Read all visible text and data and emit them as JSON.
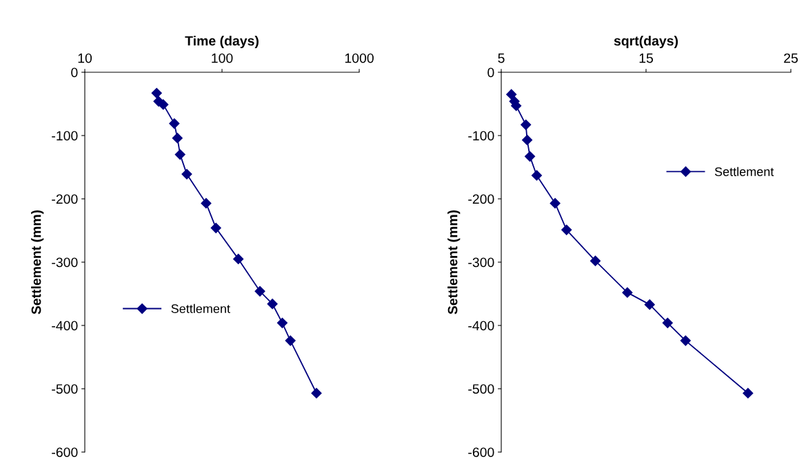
{
  "chart_data": [
    {
      "type": "line",
      "xlabel": "Time (days)",
      "ylabel": "Settlement (mm)",
      "log": "x",
      "xlim": [
        10,
        1000
      ],
      "xticks": [
        10,
        100,
        1000
      ],
      "ylim": [
        -600,
        0
      ],
      "yticks": [
        0,
        -100,
        -200,
        -300,
        -400,
        -500,
        -600
      ],
      "grid": false,
      "legend": "bottom left",
      "marker": "diamond",
      "line_style": "solid",
      "series": [
        {
          "name": "Settlement",
          "color": "#000080",
          "x": [
            33.4,
            34.5,
            37.3,
            44.9,
            47.3,
            49.5,
            55.4,
            76.6,
            90.3,
            131.5,
            189,
            233,
            275,
            315,
            488
          ],
          "values": [
            -33,
            -46,
            -51,
            -81,
            -104,
            -130,
            -161,
            -207,
            -246,
            -295,
            -346,
            -366,
            -396,
            -424,
            -507
          ]
        }
      ]
    },
    {
      "type": "line",
      "xlabel": "sqrt(days)",
      "ylabel": "Settlement (mm)",
      "xlim": [
        5,
        25
      ],
      "xticks": [
        5,
        15,
        25
      ],
      "ylim": [
        -600,
        0
      ],
      "yticks": [
        0,
        -100,
        -200,
        -300,
        -400,
        -500,
        -600
      ],
      "grid": false,
      "legend": "top right",
      "marker": "diamond",
      "line_style": "solid",
      "series": [
        {
          "name": "Settlement",
          "color": "#000080",
          "x": [
            5.7,
            5.91,
            6.03,
            6.7,
            6.79,
            6.98,
            7.45,
            8.72,
            9.51,
            11.5,
            13.71,
            15.25,
            16.49,
            17.73,
            22.04
          ],
          "values": [
            -35,
            -46,
            -53,
            -83,
            -107,
            -133,
            -163,
            -207,
            -249,
            -298,
            -348,
            -367,
            -396,
            -424,
            -507
          ]
        }
      ]
    }
  ]
}
